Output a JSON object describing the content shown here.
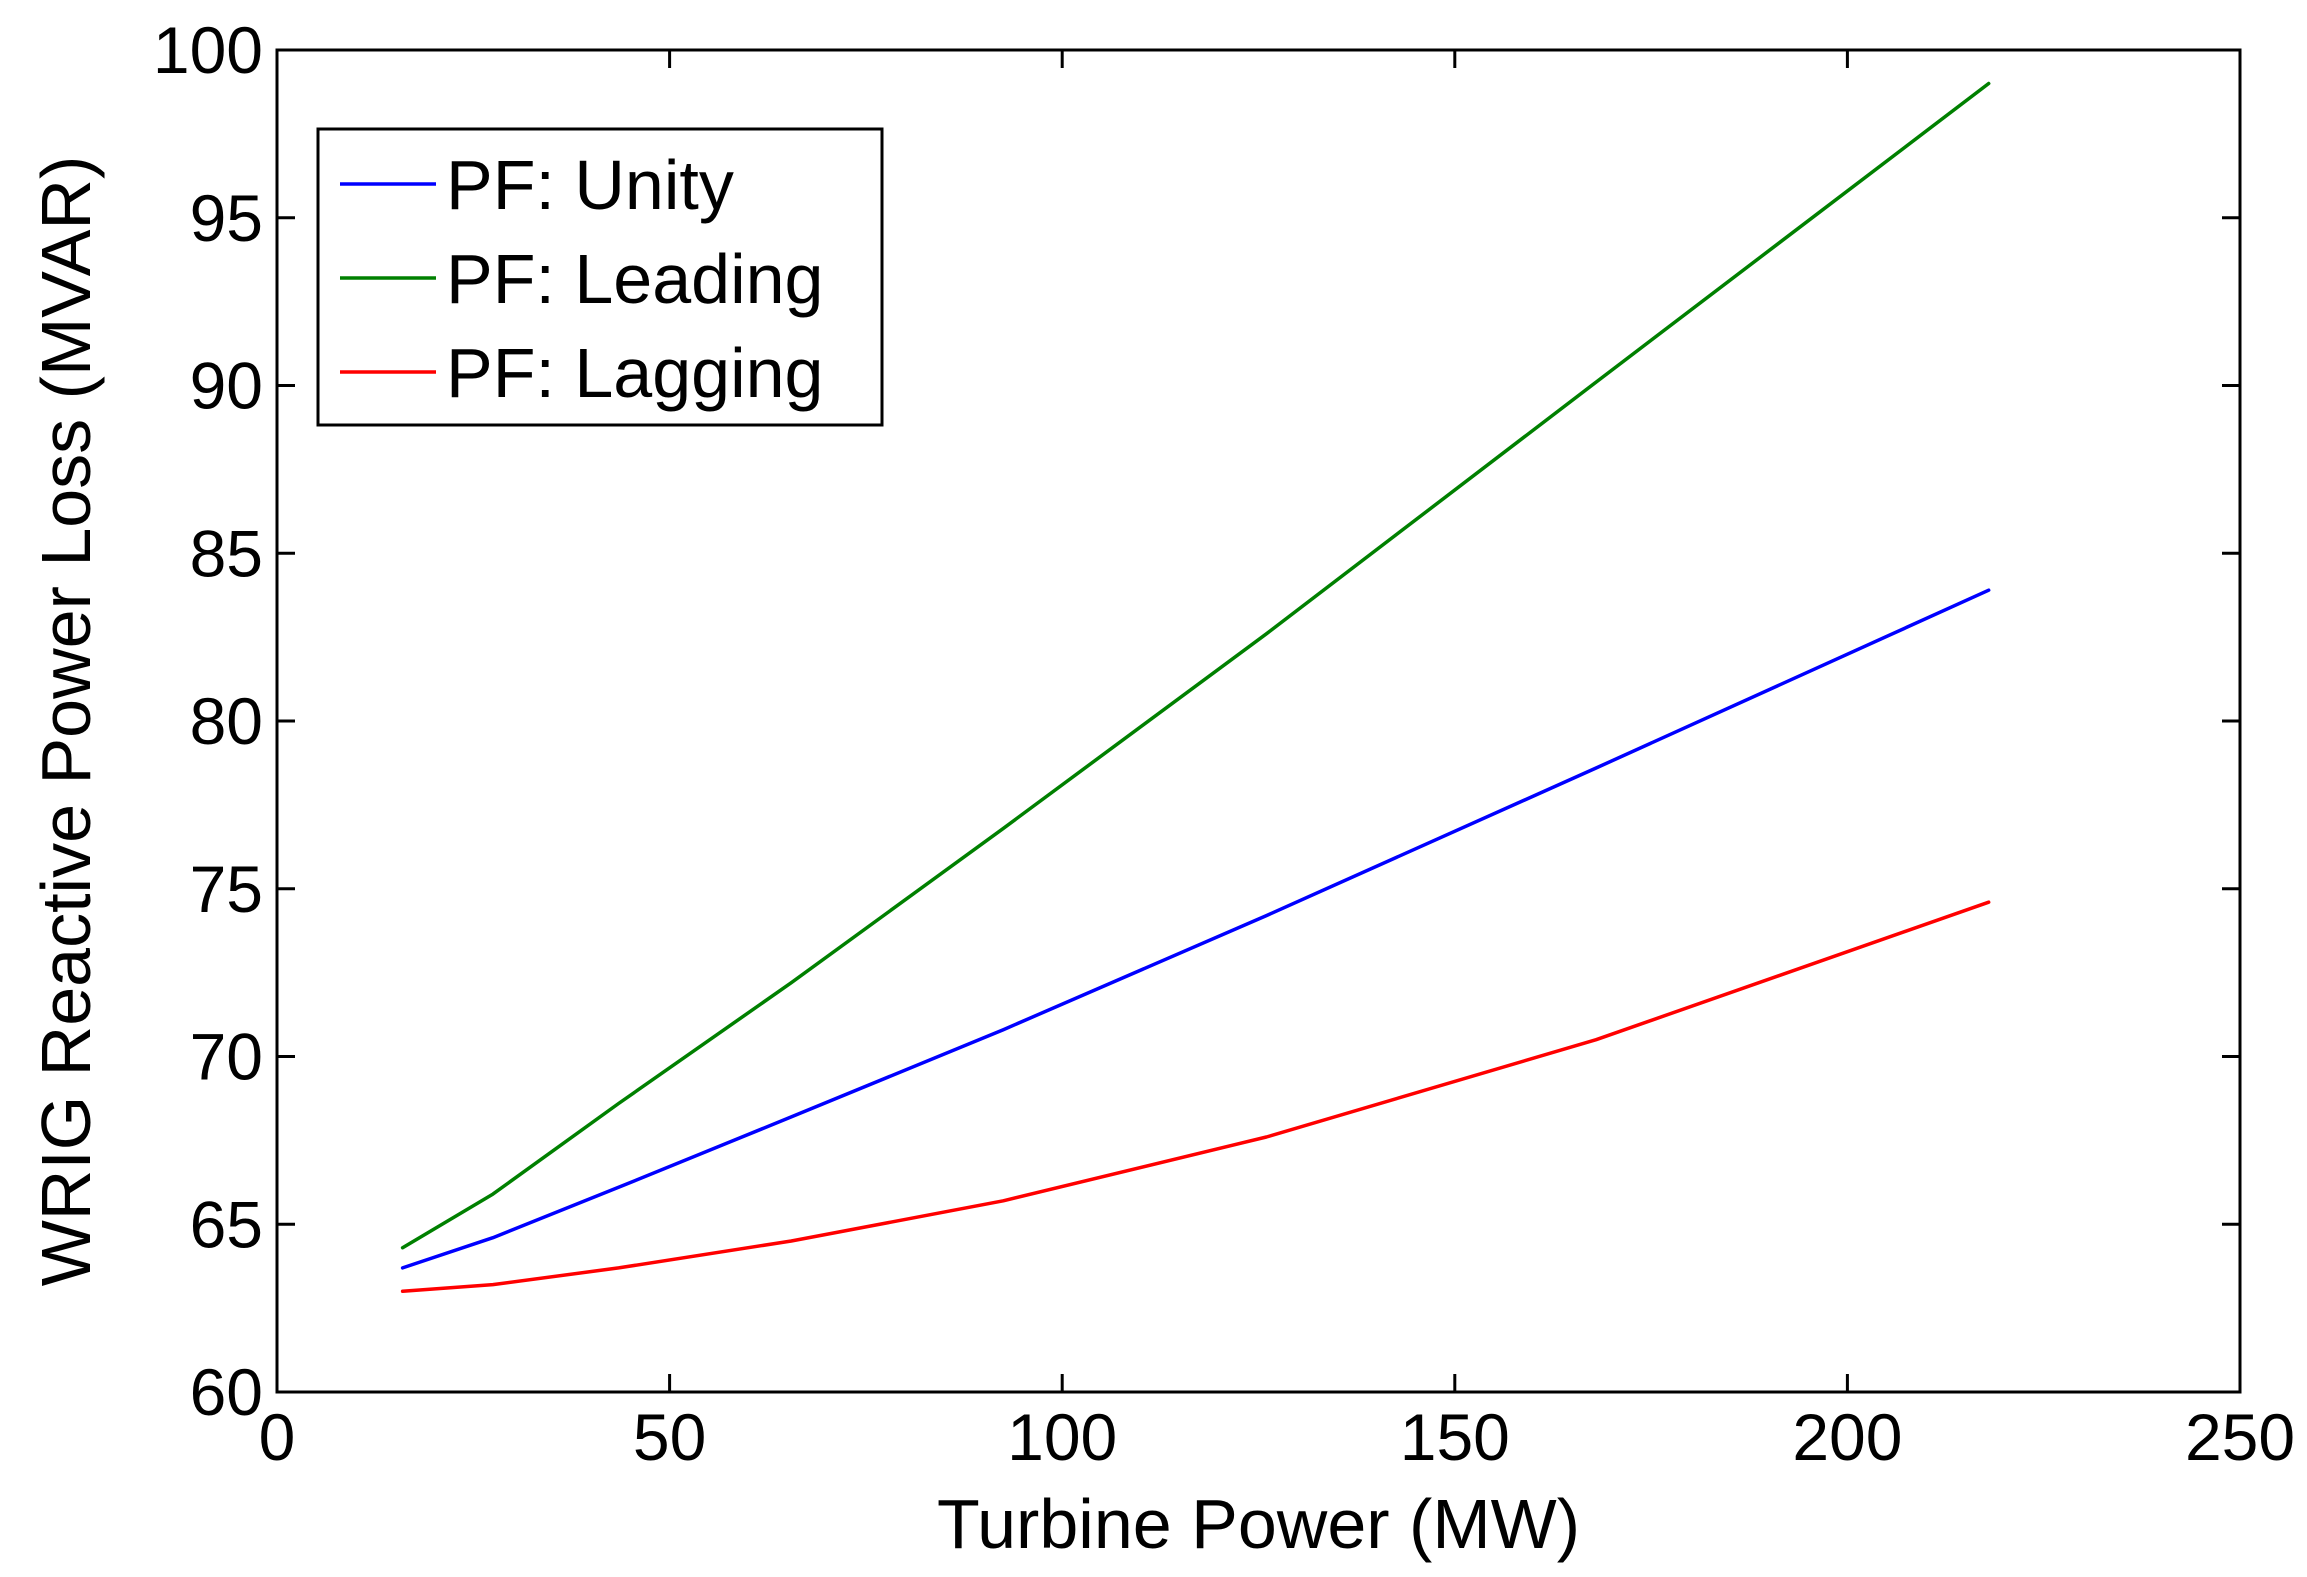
{
  "chart_data": {
    "type": "line",
    "title": "",
    "xlabel": "Turbine Power (MW)",
    "ylabel": "WRIG Reactive Power Loss (MVAR)",
    "xlim": [
      0,
      250
    ],
    "ylim": [
      60,
      100
    ],
    "xticks": [
      0,
      50,
      100,
      150,
      200,
      250
    ],
    "yticks": [
      60,
      65,
      70,
      75,
      80,
      85,
      90,
      95,
      100
    ],
    "xtick_labels": [
      "0",
      "50",
      "100",
      "150",
      "200",
      "250"
    ],
    "ytick_labels": [
      "60",
      "65",
      "70",
      "75",
      "80",
      "85",
      "90",
      "95",
      "100"
    ],
    "grid": false,
    "legend_position": "top-left",
    "series": [
      {
        "name": "PF: Unity",
        "color": "#0000ff",
        "x": [
          16,
          27.5,
          43.5,
          65.5,
          92.5,
          126,
          168,
          218
        ],
        "y": [
          63.7,
          64.6,
          66.1,
          68.2,
          70.8,
          74.2,
          78.6,
          83.9
        ]
      },
      {
        "name": "PF: Leading",
        "color": "#008000",
        "x": [
          16,
          27.5,
          43.5,
          65.5,
          92.5,
          126,
          168,
          218
        ],
        "y": [
          64.3,
          65.9,
          68.6,
          72.2,
          76.8,
          82.6,
          90.1,
          99.0
        ]
      },
      {
        "name": "PF: Lagging",
        "color": "#ff0000",
        "x": [
          16,
          27.5,
          43.5,
          65.5,
          92.5,
          126,
          168,
          218
        ],
        "y": [
          63.0,
          63.2,
          63.7,
          64.5,
          65.7,
          67.6,
          70.5,
          74.6
        ]
      }
    ]
  }
}
